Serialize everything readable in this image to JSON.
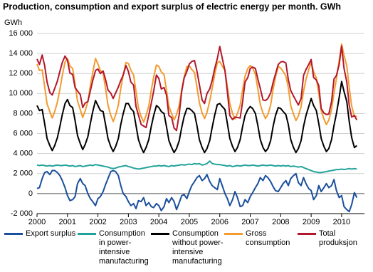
{
  "chart_data": {
    "type": "line",
    "title": "Production, consumption and export surplus of electric energy per month. GWh",
    "ylabel": "GWh",
    "x": [
      2000,
      2000.08,
      2000.17,
      2000.25,
      2000.33,
      2000.42,
      2000.5,
      2000.58,
      2000.67,
      2000.75,
      2000.83,
      2000.92,
      2001,
      2001.08,
      2001.17,
      2001.25,
      2001.33,
      2001.42,
      2001.5,
      2001.58,
      2001.67,
      2001.75,
      2001.83,
      2001.92,
      2002,
      2002.08,
      2002.17,
      2002.25,
      2002.33,
      2002.42,
      2002.5,
      2002.58,
      2002.67,
      2002.75,
      2002.83,
      2002.92,
      2003,
      2003.08,
      2003.17,
      2003.25,
      2003.33,
      2003.42,
      2003.5,
      2003.58,
      2003.67,
      2003.75,
      2003.83,
      2003.92,
      2004,
      2004.08,
      2004.17,
      2004.25,
      2004.33,
      2004.42,
      2004.5,
      2004.58,
      2004.67,
      2004.75,
      2004.83,
      2004.92,
      2005,
      2005.08,
      2005.17,
      2005.25,
      2005.33,
      2005.42,
      2005.5,
      2005.58,
      2005.67,
      2005.75,
      2005.83,
      2005.92,
      2006,
      2006.08,
      2006.17,
      2006.25,
      2006.33,
      2006.42,
      2006.5,
      2006.58,
      2006.67,
      2006.75,
      2006.83,
      2006.92,
      2007,
      2007.08,
      2007.17,
      2007.25,
      2007.33,
      2007.42,
      2007.5,
      2007.58,
      2007.67,
      2007.75,
      2007.83,
      2007.92,
      2008,
      2008.08,
      2008.17,
      2008.25,
      2008.33,
      2008.42,
      2008.5,
      2008.58,
      2008.67,
      2008.75,
      2008.83,
      2008.92,
      2009,
      2009.08,
      2009.17,
      2009.25,
      2009.33,
      2009.42,
      2009.5,
      2009.58,
      2009.67,
      2009.75,
      2009.83,
      2009.92,
      2010,
      2010.08,
      2010.17,
      2010.25,
      2010.33,
      2010.42,
      2010.5
    ],
    "series": [
      {
        "name": "Export surplus",
        "color": "#1a4f9c",
        "values": [
          500,
          600,
          1500,
          2100,
          2200,
          1900,
          2300,
          2300,
          2100,
          1800,
          1300,
          600,
          -200,
          -700,
          -600,
          -300,
          1000,
          1500,
          1000,
          800,
          0,
          -500,
          -800,
          -1200,
          -500,
          -300,
          200,
          900,
          1500,
          2200,
          2300,
          2200,
          1800,
          800,
          0,
          -300,
          -800,
          -1200,
          -1000,
          -1500,
          -700,
          -800,
          -400,
          -1200,
          -900,
          -1300,
          -1400,
          -1000,
          -1200,
          -1700,
          -1300,
          -500,
          -900,
          -400,
          -800,
          -1600,
          -900,
          -200,
          -100,
          -500,
          200,
          800,
          1200,
          1600,
          1800,
          1300,
          1500,
          1900,
          1200,
          800,
          600,
          400,
          1500,
          800,
          0,
          -500,
          -1200,
          -600,
          200,
          -400,
          -1300,
          -1200,
          -600,
          -900,
          -300,
          100,
          600,
          1000,
          1600,
          1300,
          1800,
          1600,
          1200,
          700,
          300,
          200,
          600,
          1000,
          1300,
          800,
          1500,
          1800,
          2000,
          1100,
          800,
          1600,
          1000,
          500,
          300,
          -600,
          -200,
          800,
          200,
          600,
          1000,
          600,
          800,
          1400,
          300,
          -400,
          -200,
          -1300,
          -1600,
          -1800,
          -1100,
          100,
          -400
        ]
      },
      {
        "name": "Consumption in power-intensive manufacturing",
        "color": "#22a39a",
        "values": [
          2850,
          2800,
          2850,
          2800,
          2750,
          2800,
          2750,
          2800,
          2850,
          2800,
          2800,
          2850,
          2800,
          2750,
          2800,
          2700,
          2750,
          2800,
          2700,
          2750,
          2800,
          2850,
          2800,
          2900,
          2850,
          2800,
          2750,
          2700,
          2650,
          2550,
          2500,
          2550,
          2650,
          2700,
          2750,
          2800,
          2700,
          2650,
          2550,
          2500,
          2450,
          2500,
          2550,
          2600,
          2650,
          2700,
          2750,
          2750,
          2800,
          2750,
          2800,
          2750,
          2700,
          2800,
          2750,
          2800,
          2850,
          2900,
          2850,
          2900,
          2950,
          2900,
          3000,
          2950,
          3000,
          2850,
          2900,
          3000,
          3250,
          3000,
          2950,
          2900,
          2900,
          2850,
          2800,
          2750,
          2800,
          2700,
          2750,
          2800,
          2750,
          2800,
          2850,
          2800,
          2800,
          2850,
          2800,
          2750,
          2800,
          2850,
          2800,
          2800,
          2850,
          2800,
          2750,
          2800,
          2750,
          2800,
          2750,
          2800,
          2700,
          2750,
          2700,
          2650,
          2700,
          2600,
          2500,
          2400,
          2300,
          2200,
          2150,
          2100,
          2100,
          2150,
          2200,
          2250,
          2300,
          2350,
          2400,
          2400,
          2450,
          2400,
          2450,
          2500,
          2450,
          2500,
          2450
        ]
      },
      {
        "name": "Consumption without power-intensive manufacturing",
        "color": "#000000",
        "values": [
          8800,
          8300,
          8400,
          7000,
          5500,
          4800,
          4300,
          4800,
          5600,
          6700,
          7900,
          9000,
          9400,
          8800,
          8600,
          7300,
          5800,
          5000,
          4400,
          4900,
          5700,
          7000,
          8200,
          9300,
          8800,
          8300,
          8200,
          6900,
          5500,
          4700,
          4200,
          4700,
          5500,
          6900,
          8000,
          9000,
          9000,
          8500,
          8200,
          6800,
          5400,
          4600,
          4100,
          4600,
          5400,
          6700,
          7800,
          8800,
          8600,
          8200,
          8000,
          6700,
          5300,
          4600,
          4100,
          4500,
          5300,
          6600,
          7700,
          8500,
          8500,
          8300,
          8000,
          6800,
          5400,
          4600,
          4100,
          4500,
          5300,
          6600,
          7800,
          8900,
          9000,
          8700,
          8400,
          7000,
          5500,
          4700,
          4200,
          4600,
          5400,
          6700,
          7800,
          8400,
          8700,
          8500,
          8000,
          6800,
          5400,
          4600,
          4200,
          4500,
          5300,
          6700,
          7800,
          8600,
          8500,
          8200,
          7900,
          6900,
          5400,
          4600,
          4100,
          4500,
          5300,
          6700,
          7800,
          8700,
          9500,
          8800,
          8300,
          7000,
          5500,
          4700,
          4200,
          4500,
          5400,
          6800,
          8000,
          9600,
          11200,
          10200,
          9200,
          7200,
          5600,
          4600,
          4800
        ]
      },
      {
        "name": "Gross consumption",
        "color": "#f39b2e",
        "values": [
          12950,
          12300,
          12350,
          10700,
          8950,
          8200,
          7550,
          8200,
          9150,
          10400,
          11800,
          13150,
          13500,
          12750,
          12500,
          10900,
          9250,
          8400,
          7600,
          8250,
          9200,
          10750,
          12100,
          13500,
          12950,
          12300,
          12050,
          10500,
          8850,
          7850,
          7200,
          7850,
          8850,
          10500,
          11850,
          13100,
          13000,
          12350,
          11850,
          10200,
          8550,
          7700,
          7150,
          7800,
          8750,
          10300,
          11650,
          12850,
          12700,
          12150,
          11900,
          10350,
          8700,
          8000,
          7350,
          7900,
          8850,
          10400,
          11650,
          12700,
          12750,
          12400,
          12100,
          10650,
          9100,
          8050,
          7500,
          8100,
          9250,
          10500,
          11850,
          13100,
          13200,
          12750,
          12300,
          10650,
          9000,
          8000,
          7450,
          8000,
          8850,
          10400,
          11750,
          12500,
          12800,
          12550,
          11900,
          10450,
          8900,
          8050,
          7500,
          7900,
          8850,
          10400,
          11650,
          12700,
          12550,
          12200,
          11750,
          10600,
          8800,
          7950,
          7300,
          7750,
          8700,
          10200,
          11400,
          12400,
          13100,
          12200,
          11550,
          10000,
          8300,
          7450,
          6900,
          7350,
          8400,
          10050,
          11500,
          13300,
          14950,
          13800,
          12750,
          10600,
          8750,
          7700,
          7750
        ]
      },
      {
        "name": "Total produksjon",
        "color": "#b2182b",
        "values": [
          13450,
          12900,
          13850,
          12800,
          11150,
          10100,
          9850,
          10500,
          11250,
          12200,
          13100,
          13750,
          13300,
          12050,
          11900,
          10600,
          10250,
          9900,
          8600,
          9050,
          9200,
          10250,
          11300,
          12300,
          12450,
          12000,
          12250,
          11400,
          10350,
          10050,
          9500,
          10050,
          10650,
          11300,
          11850,
          12800,
          12200,
          11150,
          10850,
          8700,
          7850,
          6900,
          6750,
          6600,
          7850,
          9000,
          10250,
          11850,
          11500,
          10450,
          10600,
          9850,
          7800,
          7600,
          6550,
          6300,
          7950,
          10200,
          11550,
          12200,
          12950,
          13200,
          13300,
          12250,
          10900,
          9350,
          9000,
          10000,
          10450,
          11300,
          12450,
          13500,
          14700,
          13550,
          12300,
          10150,
          7800,
          7400,
          7650,
          7600,
          7550,
          9200,
          11150,
          11600,
          12500,
          12650,
          12500,
          11450,
          10500,
          9350,
          9300,
          9500,
          10050,
          11100,
          11950,
          12900,
          13150,
          13200,
          13050,
          11400,
          10300,
          9750,
          9300,
          8850,
          9500,
          11800,
          12400,
          12900,
          13400,
          11600,
          11350,
          10800,
          8500,
          8050,
          7900,
          7950,
          9200,
          11450,
          11800,
          12900,
          14750,
          12500,
          11150,
          8800,
          7650,
          7800,
          7350
        ]
      }
    ],
    "xlim": [
      2000,
      2010.75
    ],
    "xticks": [
      2000,
      2001,
      2002,
      2003,
      2004,
      2005,
      2006,
      2007,
      2008,
      2009,
      2010
    ],
    "ylim": [
      -2000,
      16000
    ],
    "yticks": [
      {
        "value": -2000,
        "label": "-2 000"
      },
      0,
      {
        "value": 2000,
        "label": "2 000"
      },
      {
        "value": 4000,
        "label": "4 000"
      },
      {
        "value": 6000,
        "label": "6 000"
      },
      {
        "value": 8000,
        "label": "8 000"
      },
      {
        "value": 10000,
        "label": "10 000"
      },
      {
        "value": 12000,
        "label": "12 000"
      },
      {
        "value": 14000,
        "label": "14 000"
      },
      {
        "value": 16000,
        "label": "16 000"
      }
    ],
    "grid": true
  }
}
